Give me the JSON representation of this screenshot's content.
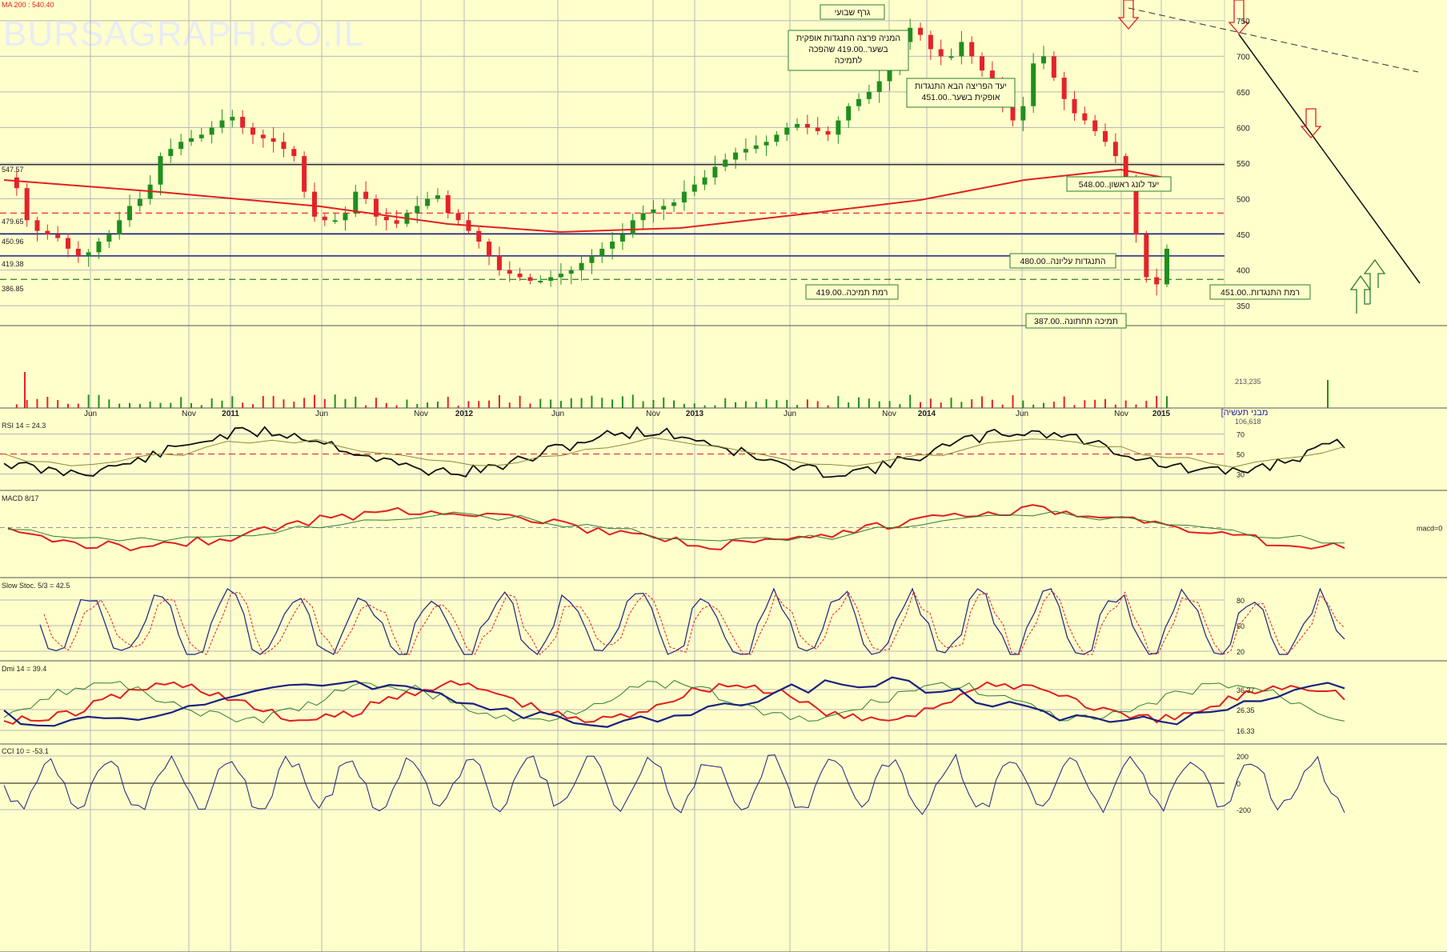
{
  "watermark": "BURSAGRAPH.CO.IL",
  "chart_data": {
    "type": "candlestick-multi-panel",
    "price_panel": {
      "indicator_label": "MA 200 : 540.40",
      "y_ticks": [
        350,
        400,
        450,
        500,
        550,
        600,
        650,
        700,
        750
      ],
      "ylim": [
        330,
        770
      ],
      "level_labels": [
        "547.57",
        "479.65",
        "450.96",
        "419.38",
        "386.85"
      ],
      "horizontal_levels": [
        {
          "value": 548,
          "color": "#333333",
          "style": "solid"
        },
        {
          "value": 480,
          "color": "#e8312a",
          "style": "dashed"
        },
        {
          "value": 451,
          "color": "#1a237e",
          "style": "solid"
        },
        {
          "value": 420,
          "color": "#1a237e",
          "style": "solid"
        },
        {
          "value": 387,
          "color": "#2e7d32",
          "style": "dashed"
        }
      ],
      "annotations": [
        {
          "text": "גרף שבועי"
        },
        {
          "lines": [
            "המניה פרצה התנגדות אופקית",
            "בשער..419.00 שהפכה",
            "לתמיכה"
          ]
        },
        {
          "lines": [
            "יעד הפריצה הבא התנגדות",
            "אופקית בשער..451.00"
          ]
        },
        {
          "text": "יעד לונג ראשון..548.00"
        },
        {
          "text": "התנגדות עליונה..480.00"
        },
        {
          "text": "רמת תמיכה..419.00"
        },
        {
          "text": "רמת התנגדות..451.00"
        },
        {
          "text": "תמיכה תחתונה..387.00"
        }
      ],
      "close_series_approx": [
        530,
        515,
        470,
        455,
        450,
        445,
        430,
        420,
        425,
        440,
        450,
        470,
        490,
        500,
        520,
        560,
        570,
        580,
        585,
        590,
        600,
        610,
        615,
        600,
        590,
        585,
        580,
        570,
        560,
        510,
        475,
        470,
        470,
        480,
        510,
        500,
        475,
        470,
        465,
        480,
        490,
        500,
        505,
        480,
        470,
        455,
        440,
        420,
        400,
        395,
        390,
        385,
        385,
        390,
        395,
        400,
        410,
        420,
        430,
        440,
        450,
        470,
        480,
        485,
        490,
        495,
        510,
        520,
        530,
        545,
        555,
        565,
        570,
        575,
        580,
        590,
        600,
        605,
        600,
        595,
        590,
        610,
        630,
        640,
        650,
        665,
        680,
        720,
        740,
        730,
        710,
        700,
        700,
        720,
        700,
        680,
        660,
        630,
        610,
        630,
        690,
        700,
        670,
        640,
        620,
        610,
        595,
        580,
        560,
        530,
        450,
        390,
        380,
        430
      ]
    },
    "volume_panel": {
      "y_ticks": [
        "213,235",
        "106,618"
      ]
    },
    "x_axis": {
      "labels": [
        "Jun",
        "Nov",
        "2011",
        "Jun",
        "Nov",
        "2012",
        "Jun",
        "Nov",
        "2013",
        "Jun",
        "Nov",
        "2014",
        "Jun",
        "Nov",
        "2015"
      ],
      "right_label": "[מבני תעשיה"
    },
    "rsi_panel": {
      "label": "RSI 14 = 24.3",
      "y_ticks": [
        30,
        50,
        70
      ]
    },
    "macd_panel": {
      "label": "MACD 8/17",
      "right_label": "macd=0"
    },
    "stoch_panel": {
      "label": "Slow Stoc. 5/3 = 42.5",
      "y_ticks": [
        20,
        50,
        80
      ]
    },
    "dmi_panel": {
      "label": "Dmi 14 = 39.4",
      "y_ticks": [
        "16.33",
        "26.35",
        "36.37"
      ]
    },
    "cci_panel": {
      "label": "CCI 10 = -53.1",
      "y_ticks": [
        "200",
        "0",
        "-200"
      ]
    },
    "colors": {
      "background": "#ffffcc",
      "grid": "#b8b8b8",
      "up_candle": "#1f8f1f",
      "down_candle": "#e3232a",
      "ma200": "#e02020",
      "price_line": "#1a237e"
    }
  }
}
